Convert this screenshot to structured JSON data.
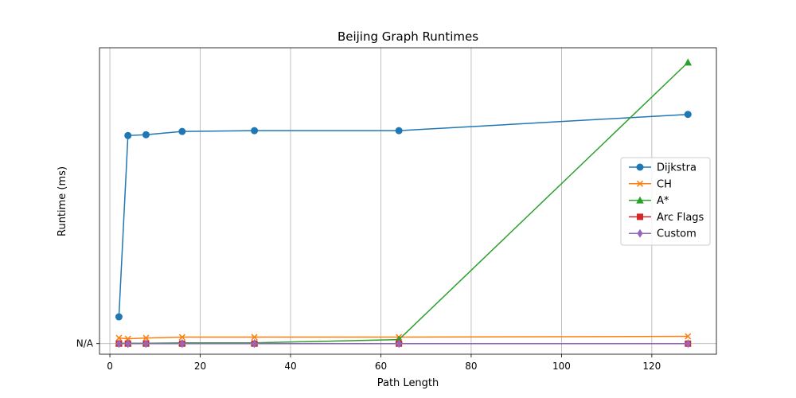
{
  "chart_data": {
    "type": "line",
    "title": "Beijing Graph Runtimes",
    "xlabel": "Path Length",
    "ylabel": "Runtime (ms)",
    "xlim": [
      -2.3,
      134.3
    ],
    "ylim": [
      -1.3,
      36.4
    ],
    "x_ticks": [
      0,
      20,
      40,
      60,
      80,
      100,
      120
    ],
    "x_tick_labels": [
      "0",
      "20",
      "40",
      "60",
      "80",
      "100",
      "120"
    ],
    "y_ticks": [
      0
    ],
    "y_tick_labels": [
      "N/A"
    ],
    "grid": "x",
    "legend_position": "center-right",
    "series": [
      {
        "name": "Dijkstra",
        "color": "#1f77b4",
        "marker": "circle",
        "x": [
          2,
          4,
          8,
          16,
          32,
          64,
          128
        ],
        "y": [
          3.3,
          25.6,
          25.7,
          26.1,
          26.2,
          26.2,
          28.2
        ]
      },
      {
        "name": "CH",
        "color": "#ff7f0e",
        "marker": "x",
        "x": [
          2,
          4,
          8,
          16,
          32,
          64,
          128
        ],
        "y": [
          0.7,
          0.6,
          0.7,
          0.8,
          0.8,
          0.8,
          0.9
        ]
      },
      {
        "name": "A*",
        "color": "#2ca02c",
        "marker": "triangle",
        "x": [
          2,
          4,
          8,
          16,
          32,
          64,
          128
        ],
        "y": [
          0.05,
          0.05,
          0.05,
          0.1,
          0.1,
          0.5,
          34.6
        ]
      },
      {
        "name": "Arc Flags",
        "color": "#d62728",
        "marker": "square",
        "x": [
          2,
          4,
          8,
          16,
          32,
          64,
          128
        ],
        "y": [
          0,
          0,
          0,
          0,
          0,
          0,
          0
        ]
      },
      {
        "name": "Custom",
        "color": "#9467bd",
        "marker": "diamond",
        "x": [
          2,
          4,
          8,
          16,
          32,
          64,
          128
        ],
        "y": [
          0,
          0,
          0,
          0,
          0,
          0,
          0
        ]
      }
    ]
  }
}
